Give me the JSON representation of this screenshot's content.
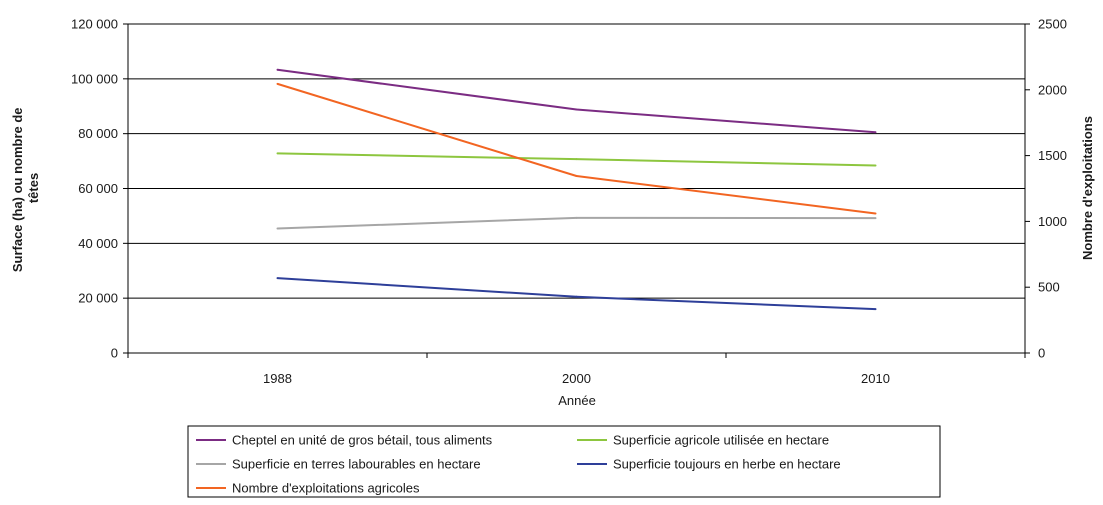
{
  "chart_data": {
    "type": "line",
    "categories": [
      "1988",
      "2000",
      "2010"
    ],
    "xlabel": "Année",
    "ylabel_lines": [
      "Surface (ha) ou nombre de",
      "têtes"
    ],
    "y2label": "Nombre d'exploitations",
    "ylim": [
      0,
      120000
    ],
    "y2lim": [
      0,
      2500
    ],
    "y_ticks": [
      0,
      20000,
      40000,
      60000,
      80000,
      100000,
      120000
    ],
    "y_tick_labels": [
      "0",
      "20 000",
      "40 000",
      "60 000",
      "80 000",
      "100 000",
      "120 000"
    ],
    "y2_ticks": [
      0,
      500,
      1000,
      1500,
      2000,
      2500
    ],
    "y2_tick_labels": [
      "0",
      "500",
      "1000",
      "1500",
      "2000",
      "2500"
    ],
    "grid": true,
    "legend_position": "bottom",
    "series": [
      {
        "name": "Cheptel en unité de gros bétail, tous aliments",
        "axis": "left",
        "color": "#7b2c83",
        "values": [
          103300,
          88800,
          80500
        ]
      },
      {
        "name": "Superficie agricole utilisée en hectare",
        "axis": "left",
        "color": "#8dc63f",
        "values": [
          72800,
          70700,
          68400
        ]
      },
      {
        "name": "Superficie en terres labourables en hectare",
        "axis": "left",
        "color": "#a6a6a6",
        "values": [
          45400,
          49300,
          49200
        ]
      },
      {
        "name": "Superficie toujours en herbe en hectare",
        "axis": "left",
        "color": "#2e3f99",
        "values": [
          27300,
          20500,
          16000
        ]
      },
      {
        "name": "Nombre d'exploitations agricoles",
        "axis": "right",
        "color": "#f26522",
        "values": [
          2045,
          1345,
          1060
        ]
      }
    ]
  }
}
